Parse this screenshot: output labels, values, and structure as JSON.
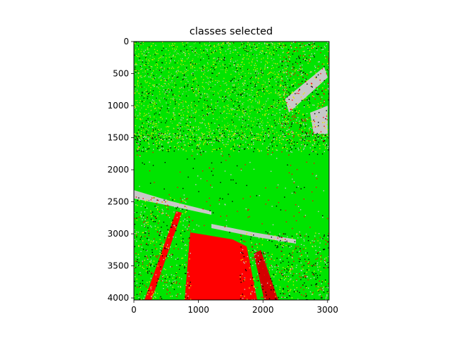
{
  "chart_data": {
    "type": "heatmap",
    "title": "classes selected",
    "xlabel": "",
    "ylabel": "",
    "xlim": [
      0,
      3024
    ],
    "ylim": [
      4032,
      0
    ],
    "x_ticks": [
      0,
      1000,
      2000,
      3000
    ],
    "y_ticks": [
      0,
      500,
      1000,
      1500,
      2000,
      2500,
      3000,
      3500,
      4000
    ],
    "grid": false,
    "classes": [
      {
        "color": "#00e400"
      },
      {
        "color": "#ff0000"
      },
      {
        "color": "#c8c8c8"
      },
      {
        "color": "#000000"
      },
      {
        "color": "#e6e600"
      }
    ]
  }
}
